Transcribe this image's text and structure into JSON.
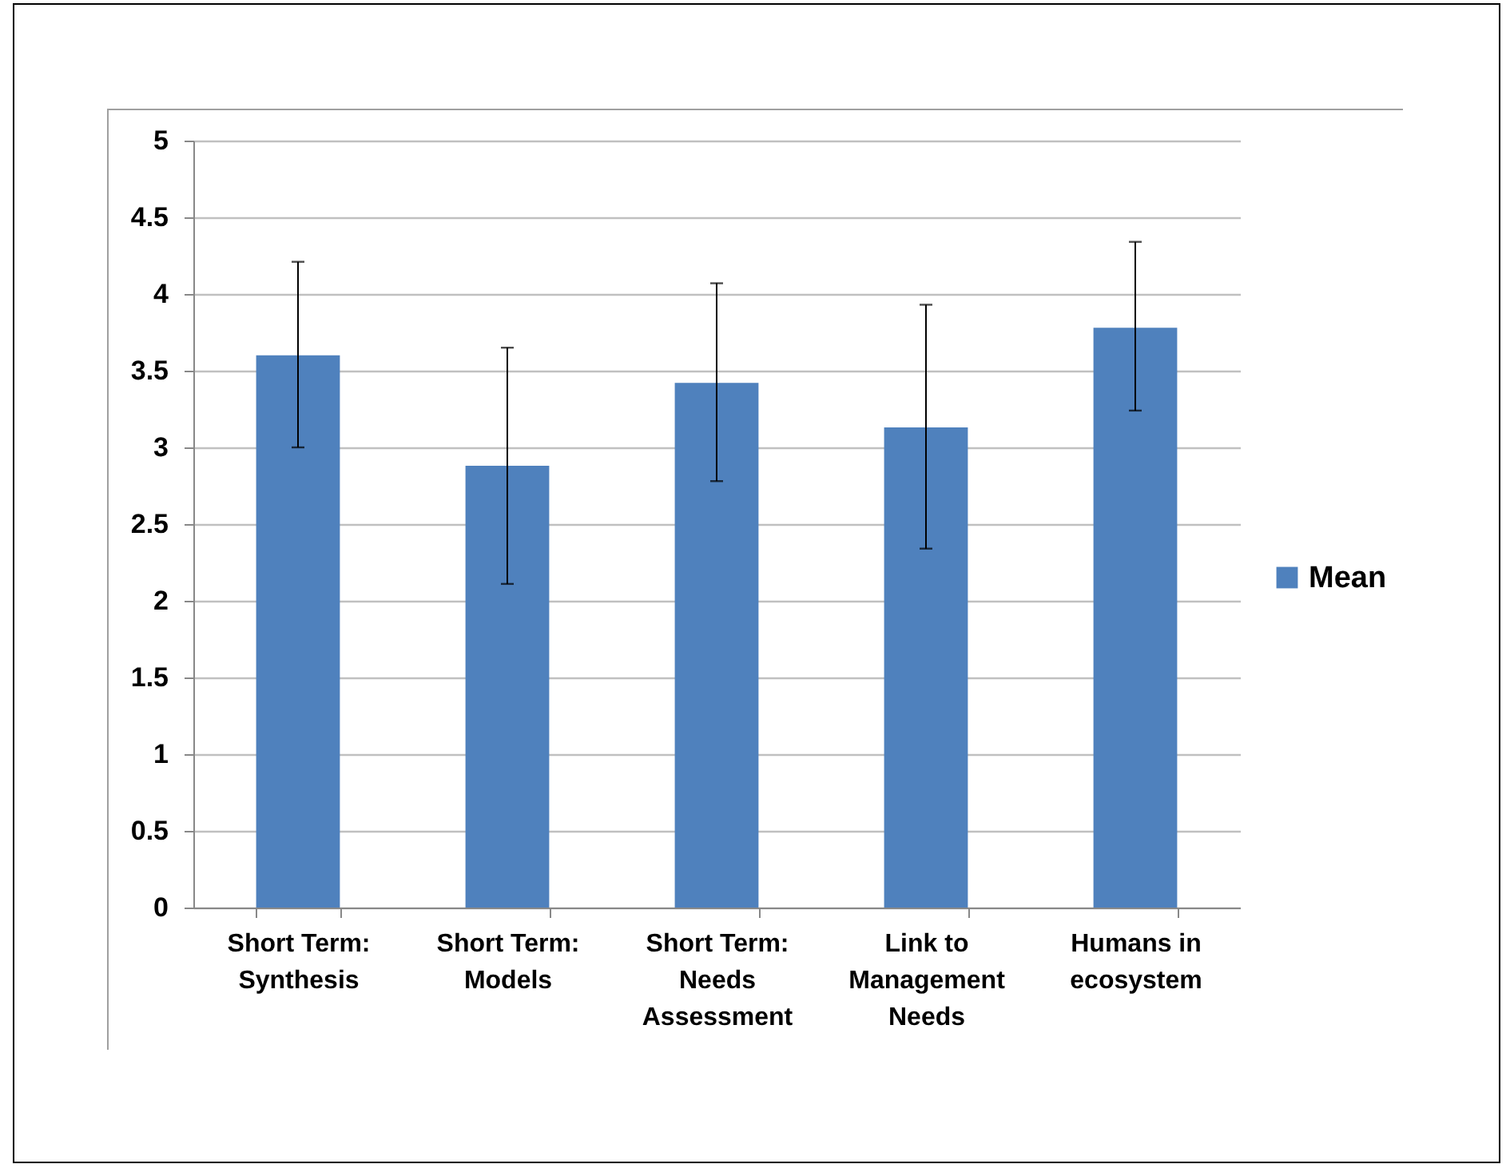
{
  "chart_data": {
    "type": "bar",
    "categories": [
      "Short Term:\nSynthesis",
      "Short Term:\nModels",
      "Short Term:\nNeeds\nAssessment",
      "Link to\nManagement\nNeeds",
      "Humans in\necosystem"
    ],
    "series": [
      {
        "name": "Mean",
        "color": "#4f81bd",
        "values": [
          3.6,
          2.88,
          3.42,
          3.13,
          3.78
        ],
        "errors": [
          [
            3.0,
            4.21
          ],
          [
            2.11,
            3.65
          ],
          [
            2.78,
            4.07
          ],
          [
            2.34,
            3.93
          ],
          [
            3.24,
            4.34
          ]
        ]
      }
    ],
    "ylim": [
      0,
      5
    ],
    "yticks": [
      0,
      0.5,
      1,
      1.5,
      2,
      2.5,
      3,
      3.5,
      4,
      4.5,
      5
    ],
    "grid": "y",
    "legend": "right"
  }
}
